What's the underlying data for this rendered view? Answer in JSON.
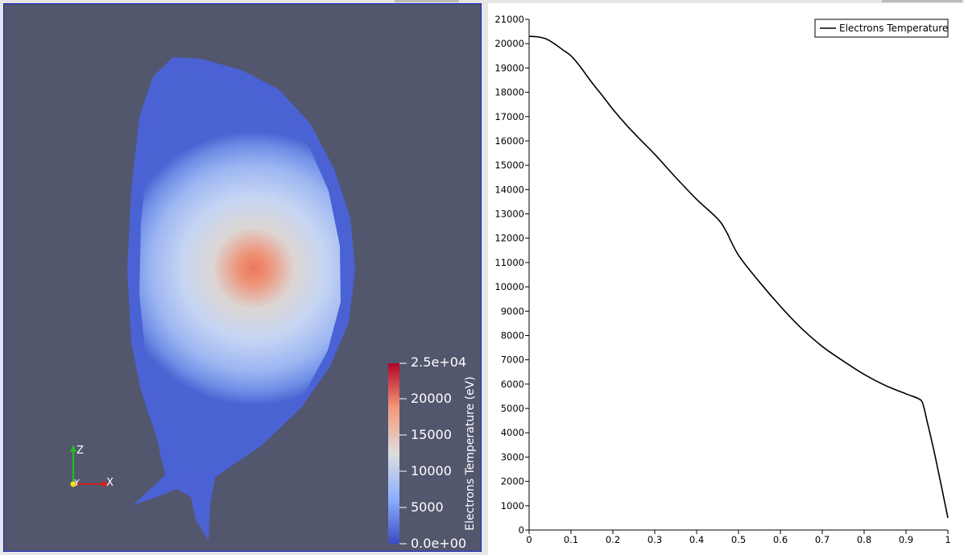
{
  "render_view": {
    "colorbar": {
      "title": "Electrons Temperature (eV)",
      "max_label": "2.5e+04",
      "min_label": "0.0e+00",
      "tick_labels": [
        "20000",
        "15000",
        "10000",
        "5000"
      ],
      "colors": [
        "#3b4cc0",
        "#8db0fe",
        "#dddddd",
        "#f49a7b",
        "#b40426"
      ]
    },
    "axes_labels": {
      "z": "Z",
      "y": "Y",
      "x": "X"
    },
    "background": "#52576e"
  },
  "chart_data": {
    "type": "line",
    "legend": "top-right",
    "series": [
      {
        "name": "Electrons Temperature",
        "color": "#000000",
        "x": [
          0,
          0.02,
          0.04,
          0.06,
          0.08,
          0.1,
          0.12,
          0.15,
          0.18,
          0.2,
          0.23,
          0.26,
          0.3,
          0.35,
          0.4,
          0.45,
          0.47,
          0.5,
          0.55,
          0.6,
          0.65,
          0.7,
          0.75,
          0.8,
          0.85,
          0.9,
          0.93,
          0.94,
          0.95,
          0.97,
          1.0
        ],
        "y": [
          20300,
          20280,
          20200,
          20000,
          19750,
          19500,
          19100,
          18400,
          17750,
          17300,
          16700,
          16150,
          15450,
          14500,
          13600,
          12800,
          12300,
          11300,
          10200,
          9200,
          8300,
          7550,
          6950,
          6400,
          5950,
          5600,
          5400,
          5200,
          4500,
          3000,
          500
        ]
      }
    ],
    "xlim": [
      0,
      1
    ],
    "ylim": [
      0,
      21000
    ],
    "x_ticks": [
      "0",
      "0.1",
      "0.2",
      "0.3",
      "0.4",
      "0.5",
      "0.6",
      "0.7",
      "0.8",
      "0.9",
      "1"
    ],
    "y_ticks": [
      "0",
      "1000",
      "2000",
      "3000",
      "4000",
      "5000",
      "6000",
      "7000",
      "8000",
      "9000",
      "10000",
      "11000",
      "12000",
      "13000",
      "14000",
      "15000",
      "16000",
      "17000",
      "18000",
      "19000",
      "20000",
      "21000"
    ],
    "grid": false
  }
}
